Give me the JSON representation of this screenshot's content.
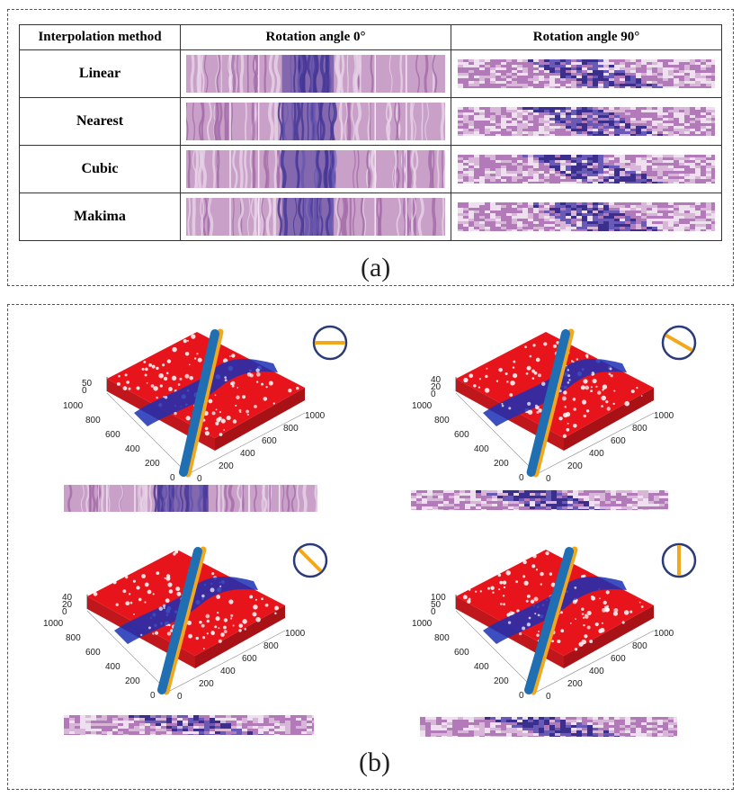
{
  "panel_a": {
    "headers": [
      "Interpolation method",
      "Rotation angle 0°",
      "Rotation angle 90°"
    ],
    "rows": [
      {
        "method": "Linear"
      },
      {
        "method": "Nearest"
      },
      {
        "method": "Cubic"
      },
      {
        "method": "Makima"
      }
    ],
    "caption": "(a)"
  },
  "panel_b": {
    "caption": "(b)",
    "views": [
      {
        "z_ticks": [
          "50",
          "0"
        ],
        "xy_ticks_left": [
          "1000",
          "800",
          "600",
          "400",
          "200",
          "0"
        ],
        "xy_ticks_right": [
          "0",
          "200",
          "400",
          "600",
          "800",
          "1000"
        ],
        "indicator_angle_deg": 0
      },
      {
        "z_ticks": [
          "40",
          "20",
          "0"
        ],
        "xy_ticks_left": [
          "1000",
          "800",
          "600",
          "400",
          "200",
          "0"
        ],
        "xy_ticks_right": [
          "0",
          "200",
          "400",
          "600",
          "800",
          "1000"
        ],
        "indicator_angle_deg": 30
      },
      {
        "z_ticks": [
          "40",
          "20",
          "0"
        ],
        "xy_ticks_left": [
          "1000",
          "800",
          "600",
          "400",
          "200",
          "0"
        ],
        "xy_ticks_right": [
          "0",
          "200",
          "400",
          "600",
          "800",
          "1000"
        ],
        "indicator_angle_deg": 45
      },
      {
        "z_ticks": [
          "100",
          "50",
          "0"
        ],
        "xy_ticks_left": [
          "1000",
          "800",
          "600",
          "400",
          "200",
          "0"
        ],
        "xy_ticks_right": [
          "0",
          "200",
          "400",
          "600",
          "800",
          "1000"
        ],
        "indicator_angle_deg": 90
      }
    ]
  },
  "colors": {
    "tissue_pink": "#c9a0c8",
    "tissue_purple": "#4a3a9a",
    "volume_red": "#e8141b",
    "volume_blue": "#1a2fb5",
    "cutline_orange": "#f2a81d",
    "cutline_blue": "#1f6fb2",
    "indicator_navy": "#2a3b78"
  }
}
